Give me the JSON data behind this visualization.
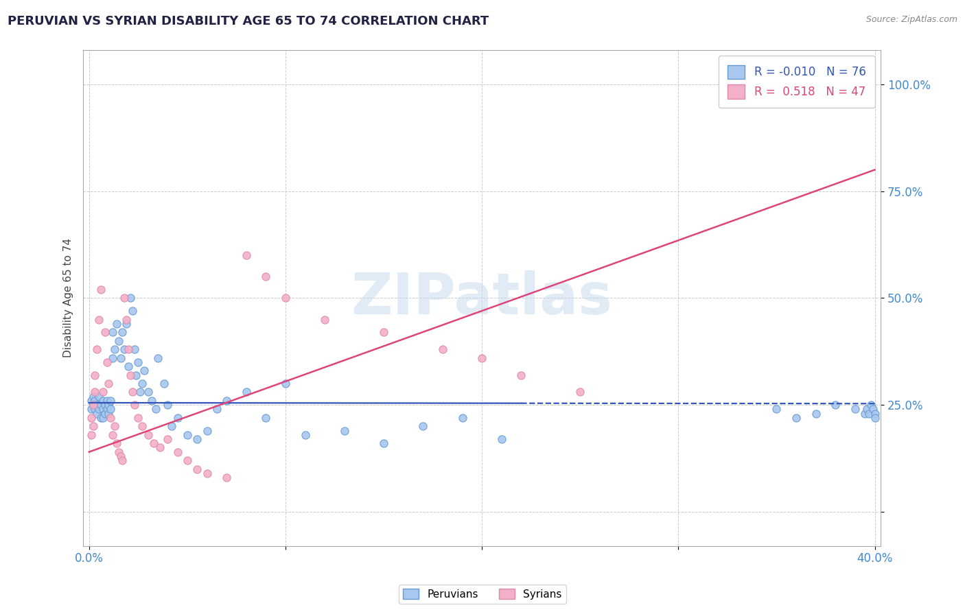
{
  "title": "PERUVIAN VS SYRIAN DISABILITY AGE 65 TO 74 CORRELATION CHART",
  "source": "Source: ZipAtlas.com",
  "ylabel": "Disability Age 65 to 74",
  "xlim": [
    -0.003,
    0.403
  ],
  "ylim": [
    -0.08,
    1.08
  ],
  "xtick_positions": [
    0.0,
    0.1,
    0.2,
    0.3,
    0.4
  ],
  "xtick_labels": [
    "0.0%",
    "",
    "",
    "",
    "40.0%"
  ],
  "ytick_positions": [
    0.0,
    0.25,
    0.5,
    0.75,
    1.0
  ],
  "ytick_labels": [
    "",
    "25.0%",
    "50.0%",
    "75.0%",
    "100.0%"
  ],
  "peruvian_color": "#a8c8f0",
  "syrian_color": "#f4b0c8",
  "peruvian_edge": "#6699cc",
  "syrian_edge": "#dd88aa",
  "trend_peruvian_color": "#3355bb",
  "trend_syrian_color": "#dd4477",
  "R_peruvian": -0.01,
  "N_peruvian": 76,
  "R_syrian": 0.518,
  "N_syrian": 47,
  "legend_label_peruvian": "Peruvians",
  "legend_label_syrian": "Syrians",
  "watermark": "ZIPatlas",
  "grid_color": "#cccccc",
  "axis_label_color": "#4488cc",
  "title_color": "#222244",
  "source_color": "#888888",
  "peruvian_trend_x0": 0.0,
  "peruvian_trend_y0": 0.255,
  "peruvian_trend_x1": 0.4,
  "peruvian_trend_y1": 0.253,
  "peruvian_trend_solid_end": 0.22,
  "syrian_trend_x0": 0.0,
  "syrian_trend_y0": 0.14,
  "syrian_trend_x1": 0.4,
  "syrian_trend_y1": 0.8,
  "peruvian_points_x": [
    0.001,
    0.001,
    0.002,
    0.002,
    0.003,
    0.003,
    0.004,
    0.004,
    0.005,
    0.005,
    0.005,
    0.006,
    0.006,
    0.007,
    0.007,
    0.007,
    0.008,
    0.008,
    0.009,
    0.009,
    0.01,
    0.01,
    0.011,
    0.011,
    0.012,
    0.012,
    0.013,
    0.014,
    0.015,
    0.016,
    0.017,
    0.018,
    0.019,
    0.02,
    0.021,
    0.022,
    0.023,
    0.024,
    0.025,
    0.026,
    0.027,
    0.028,
    0.03,
    0.032,
    0.034,
    0.035,
    0.038,
    0.04,
    0.042,
    0.045,
    0.05,
    0.055,
    0.06,
    0.065,
    0.07,
    0.08,
    0.09,
    0.1,
    0.11,
    0.13,
    0.15,
    0.17,
    0.19,
    0.21,
    0.35,
    0.36,
    0.37,
    0.38,
    0.39,
    0.395,
    0.396,
    0.397,
    0.398,
    0.399,
    0.4,
    0.4
  ],
  "peruvian_points_y": [
    0.26,
    0.24,
    0.25,
    0.27,
    0.24,
    0.26,
    0.25,
    0.23,
    0.25,
    0.27,
    0.24,
    0.25,
    0.22,
    0.26,
    0.24,
    0.22,
    0.25,
    0.23,
    0.26,
    0.24,
    0.25,
    0.23,
    0.26,
    0.24,
    0.36,
    0.42,
    0.38,
    0.44,
    0.4,
    0.36,
    0.42,
    0.38,
    0.44,
    0.34,
    0.5,
    0.47,
    0.38,
    0.32,
    0.35,
    0.28,
    0.3,
    0.33,
    0.28,
    0.26,
    0.24,
    0.36,
    0.3,
    0.25,
    0.2,
    0.22,
    0.18,
    0.17,
    0.19,
    0.24,
    0.26,
    0.28,
    0.22,
    0.3,
    0.18,
    0.19,
    0.16,
    0.2,
    0.22,
    0.17,
    0.24,
    0.22,
    0.23,
    0.25,
    0.24,
    0.23,
    0.24,
    0.23,
    0.25,
    0.24,
    0.23,
    0.22
  ],
  "syrian_points_x": [
    0.001,
    0.001,
    0.002,
    0.002,
    0.003,
    0.003,
    0.004,
    0.005,
    0.006,
    0.007,
    0.008,
    0.009,
    0.01,
    0.011,
    0.012,
    0.013,
    0.014,
    0.015,
    0.016,
    0.017,
    0.018,
    0.019,
    0.02,
    0.021,
    0.022,
    0.023,
    0.025,
    0.027,
    0.03,
    0.033,
    0.036,
    0.04,
    0.045,
    0.05,
    0.055,
    0.06,
    0.07,
    0.08,
    0.09,
    0.1,
    0.12,
    0.15,
    0.18,
    0.2,
    0.22,
    0.25,
    0.37
  ],
  "syrian_points_y": [
    0.22,
    0.18,
    0.25,
    0.2,
    0.28,
    0.32,
    0.38,
    0.45,
    0.52,
    0.28,
    0.42,
    0.35,
    0.3,
    0.22,
    0.18,
    0.2,
    0.16,
    0.14,
    0.13,
    0.12,
    0.5,
    0.45,
    0.38,
    0.32,
    0.28,
    0.25,
    0.22,
    0.2,
    0.18,
    0.16,
    0.15,
    0.17,
    0.14,
    0.12,
    0.1,
    0.09,
    0.08,
    0.6,
    0.55,
    0.5,
    0.45,
    0.42,
    0.38,
    0.36,
    0.32,
    0.28,
    1.0
  ]
}
